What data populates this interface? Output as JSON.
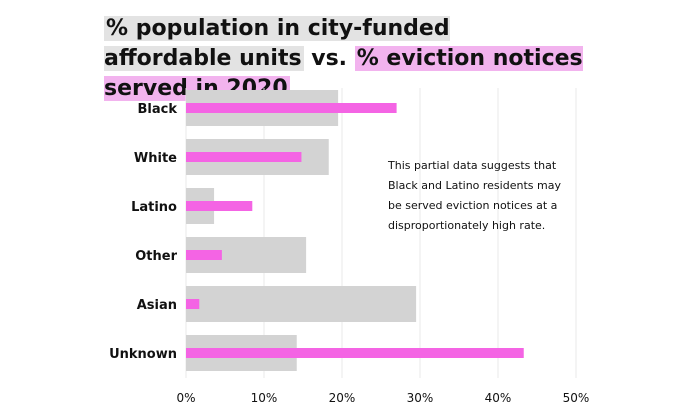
{
  "title_parts": {
    "part1": "% population in city-funded affordable units",
    "connector": " vs. ",
    "part2": "% eviction notices served in 2020"
  },
  "colors": {
    "population_bar": "#d3d3d3",
    "eviction_bar": "#f464e4",
    "gridline": "#e8e8e8",
    "title_highlight_gray": "#e3e3e3",
    "title_highlight_pink": "#f2b3ee"
  },
  "chart_data": {
    "type": "bar",
    "orientation": "horizontal",
    "categories": [
      "Black",
      "White",
      "Latino",
      "Other",
      "Asian",
      "Unknown"
    ],
    "series": [
      {
        "name": "% population in city-funded affordable units",
        "values": [
          19.5,
          18.3,
          3.6,
          15.4,
          29.5,
          14.2
        ]
      },
      {
        "name": "% eviction notices served in 2020",
        "values": [
          27.0,
          14.8,
          8.5,
          4.6,
          1.7,
          43.3
        ]
      }
    ],
    "xlim": [
      0,
      50
    ],
    "xticks": [
      0,
      10,
      20,
      30,
      40,
      50
    ],
    "xtick_labels": [
      "0%",
      "10%",
      "20%",
      "30%",
      "40%",
      "50%"
    ],
    "grid": "vertical",
    "annotation": "This partial data suggests that Black and Latino residents may be served eviction notices at a disproportionately high rate."
  }
}
